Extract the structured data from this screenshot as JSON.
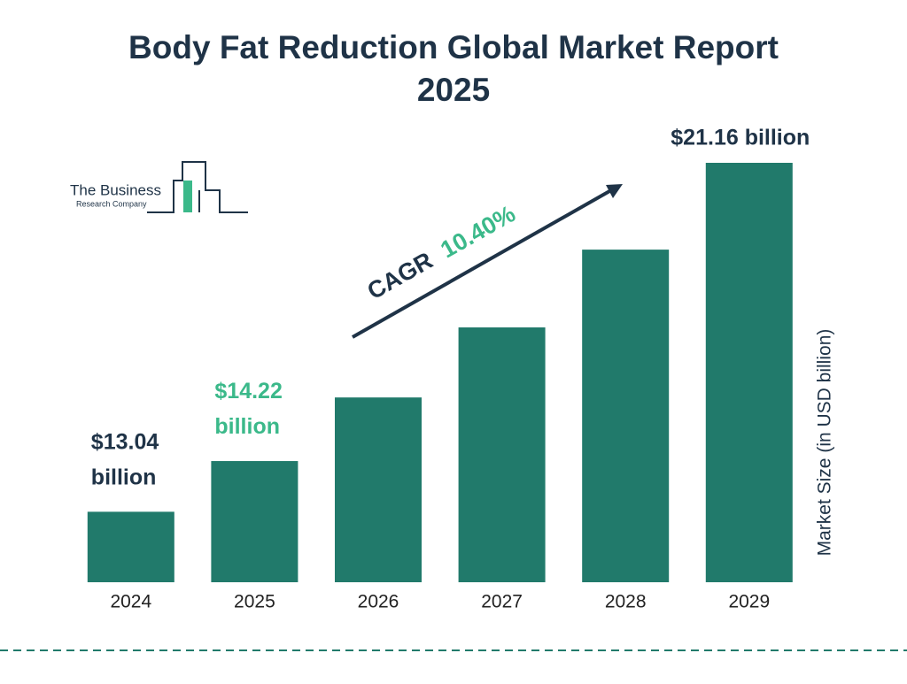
{
  "chart_data": {
    "type": "bar",
    "title": "Body Fat Reduction Global Market Report 2025",
    "categories": [
      "2024",
      "2025",
      "2026",
      "2027",
      "2028",
      "2029"
    ],
    "values": [
      13.04,
      14.22,
      15.7,
      17.33,
      19.14,
      21.16
    ],
    "value_labels": [
      "$13.04 billion",
      "$14.22 billion",
      null,
      null,
      null,
      "$21.16 billion"
    ],
    "value_label_colors": [
      "#1f3347",
      "#3bb98a",
      null,
      null,
      null,
      "#1f3347"
    ],
    "color": "#217a6b",
    "ylim": [
      11.4,
      21.16
    ],
    "y_axis_label": "Market Size (in USD billion)",
    "annotation": {
      "label": "CAGR",
      "value": "10.40%"
    },
    "logo": [
      "The Business",
      "Research Company"
    ]
  }
}
